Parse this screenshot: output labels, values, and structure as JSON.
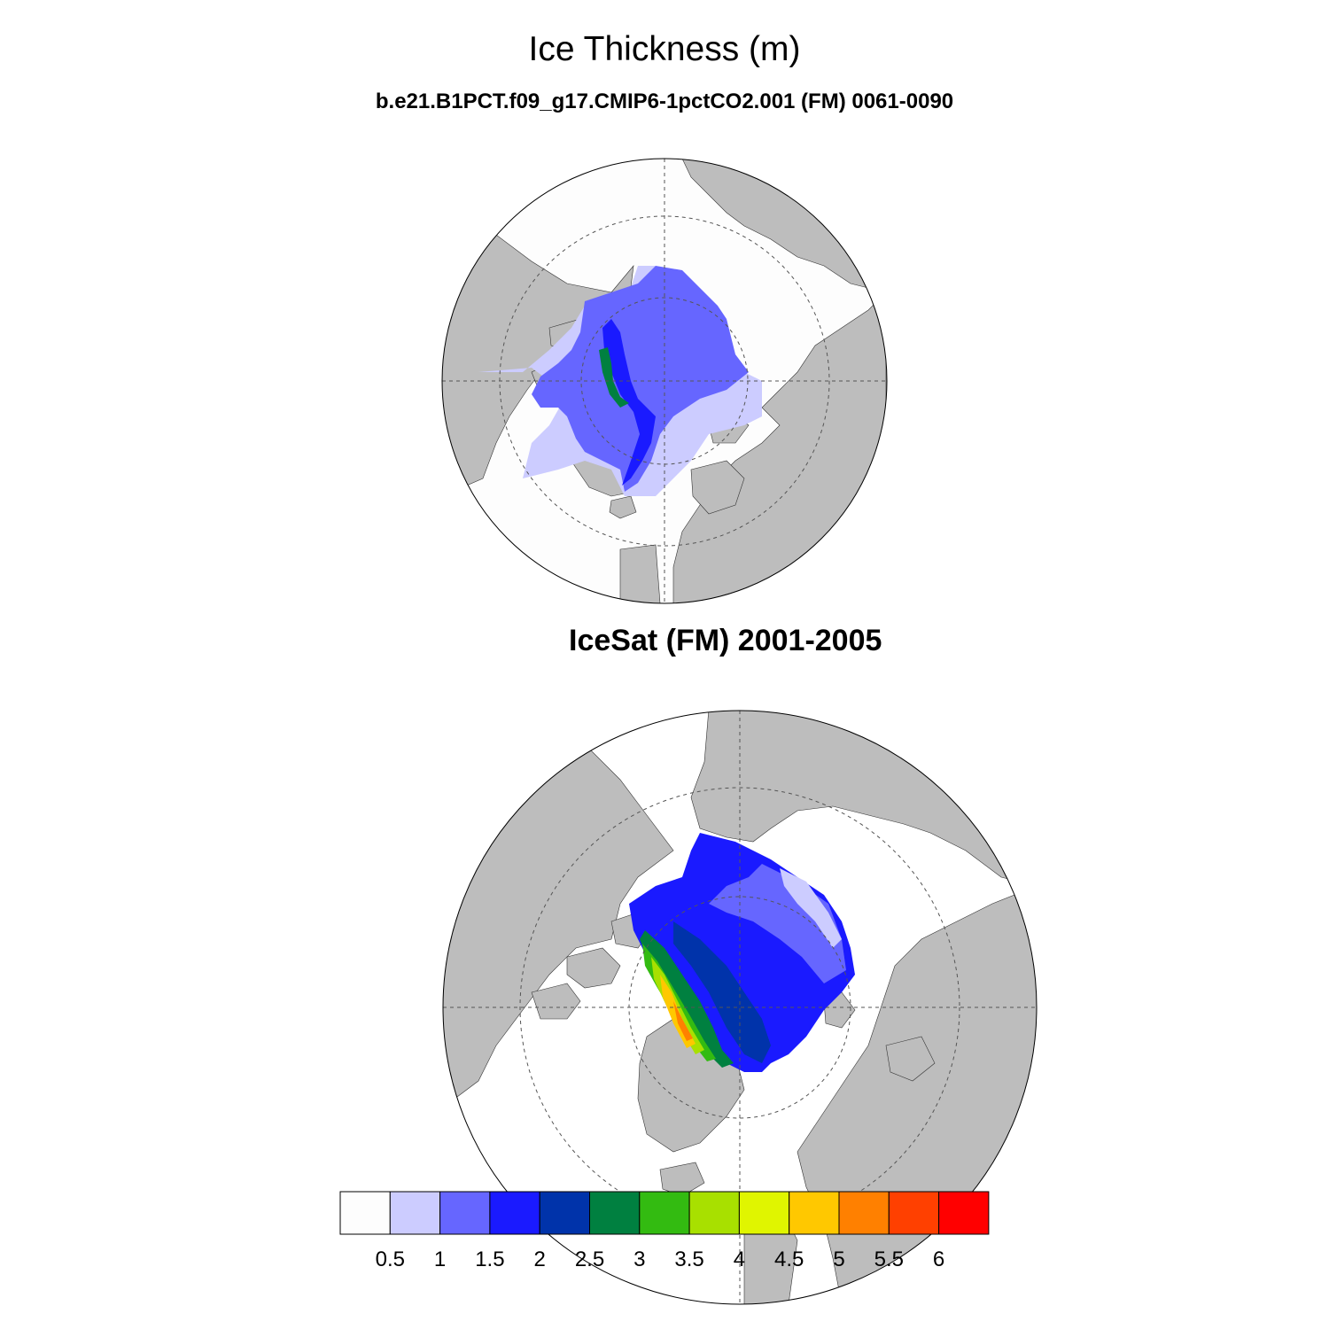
{
  "header": {
    "title": "Ice Thickness (m)",
    "subtitle": "b.e21.B1PCT.f09_g17.CMIP6-1pctCO2.001 (FM) 0061-0090"
  },
  "panels": [
    {
      "title": "",
      "projection": "north-polar-stereographic",
      "fill_source": "model"
    },
    {
      "title": "IceSat (FM) 2001-2005",
      "projection": "north-polar-stereographic",
      "fill_source": "observation"
    }
  ],
  "colors": {
    "land": "#bdbdbd",
    "ocean": "#ffffff",
    "grid": "#555555"
  },
  "colorbar": {
    "boxes": [
      "#fdfdfd",
      "#ccccff",
      "#6666ff",
      "#1a1aff",
      "#0033aa",
      "#008040",
      "#33bb11",
      "#a8e000",
      "#e0f500",
      "#ffc800",
      "#ff8000",
      "#ff4000",
      "#ff0000"
    ],
    "labels": [
      "0.5",
      "1",
      "1.5",
      "2",
      "2.5",
      "3",
      "3.5",
      "4",
      "4.5",
      "5",
      "5.5",
      "6"
    ]
  }
}
